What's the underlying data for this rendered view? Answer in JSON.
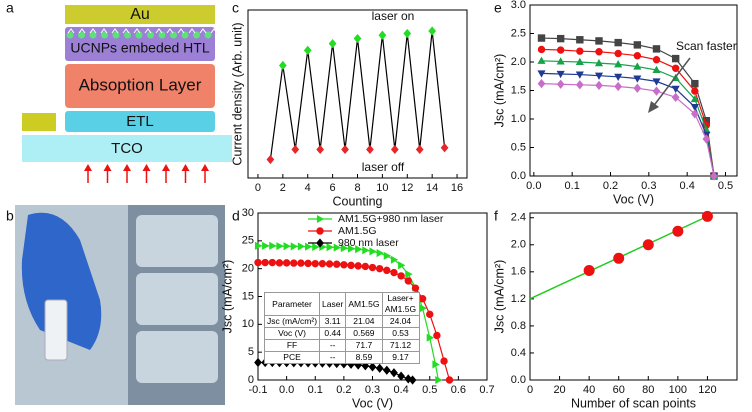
{
  "panel_labels": [
    "a",
    "b",
    "c",
    "d",
    "e",
    "f"
  ],
  "diagram": {
    "layers": [
      "Au",
      "UCNPs embeded HTL",
      "Absoption Layer",
      "ETL",
      "TCO"
    ]
  },
  "chart_data": [
    {
      "type": "line",
      "xlabel": "Counting",
      "ylabel": "Current density (Arb. unit)",
      "xlim": [
        -0.8,
        16.8
      ],
      "xticks": [
        0,
        2,
        4,
        6,
        8,
        10,
        12,
        14,
        16
      ],
      "ylim": [
        0,
        1
      ],
      "annotations": [
        "laser on",
        "laser off"
      ],
      "series": [
        {
          "color": "#000000",
          "marker": "diamond",
          "x": [
            1,
            2,
            3,
            4,
            5,
            6,
            7,
            8,
            9,
            10,
            11,
            12,
            13,
            14,
            15
          ],
          "values": [
            0.11,
            0.67,
            0.17,
            0.76,
            0.17,
            0.8,
            0.17,
            0.83,
            0.17,
            0.85,
            0.17,
            0.86,
            0.17,
            0.875,
            0.18
          ],
          "point_colors": [
            "#e8262a",
            "#22dd22",
            "#e8262a",
            "#22dd22",
            "#e8262a",
            "#22dd22",
            "#e8262a",
            "#22dd22",
            "#e8262a",
            "#22dd22",
            "#e8262a",
            "#22dd22",
            "#e8262a",
            "#22dd22",
            "#e8262a"
          ]
        }
      ]
    },
    {
      "type": "line",
      "xlabel": "Voc (V)",
      "ylabel": "Jsc (mA/cm²)",
      "xlim": [
        -0.1,
        0.7
      ],
      "xticks": [
        -0.1,
        {
          "value": 0,
          "label": "0.0"
        },
        0.1,
        0.2,
        0.3,
        0.4,
        0.5,
        0.6,
        0.7
      ],
      "ylim": [
        0,
        30
      ],
      "yticks": [
        0,
        5,
        10,
        15,
        20,
        25,
        30
      ],
      "legend": "upper right",
      "series": [
        {
          "name": "AM1.5G+980 nm laser",
          "color": "#22dd22",
          "marker": "triangle-right",
          "x": [
            -0.1,
            -0.075,
            -0.05,
            -0.025,
            0,
            0.025,
            0.05,
            0.075,
            0.1,
            0.125,
            0.15,
            0.175,
            0.2,
            0.225,
            0.25,
            0.275,
            0.3,
            0.325,
            0.35,
            0.375,
            0.4,
            0.425,
            0.45,
            0.475,
            0.5,
            0.52,
            0.53
          ],
          "values": [
            24.1,
            24.1,
            24.1,
            24.05,
            24.04,
            24.0,
            24.0,
            23.95,
            23.9,
            23.9,
            23.85,
            23.8,
            23.7,
            23.6,
            23.5,
            23.3,
            23.1,
            22.8,
            22.3,
            21.6,
            20.6,
            19.0,
            16.6,
            12.9,
            7.6,
            2.8,
            0
          ]
        },
        {
          "name": "AM1.5G",
          "color": "#ee1111",
          "marker": "circle",
          "x": [
            -0.1,
            -0.075,
            -0.05,
            -0.025,
            0,
            0.025,
            0.05,
            0.075,
            0.1,
            0.125,
            0.15,
            0.175,
            0.2,
            0.225,
            0.25,
            0.275,
            0.3,
            0.325,
            0.35,
            0.375,
            0.4,
            0.425,
            0.45,
            0.475,
            0.5,
            0.525,
            0.55,
            0.569
          ],
          "values": [
            21.1,
            21.1,
            21.1,
            21.05,
            21.04,
            21.0,
            21.0,
            20.95,
            20.9,
            20.9,
            20.85,
            20.8,
            20.7,
            20.6,
            20.5,
            20.4,
            20.2,
            20.0,
            19.7,
            19.3,
            18.7,
            17.8,
            16.5,
            14.6,
            11.8,
            8.0,
            3.4,
            0
          ]
        },
        {
          "name": "980 nm laser",
          "color": "#000000",
          "marker": "diamond",
          "x": [
            -0.1,
            -0.075,
            -0.05,
            -0.025,
            0,
            0.025,
            0.05,
            0.075,
            0.1,
            0.125,
            0.15,
            0.175,
            0.2,
            0.225,
            0.25,
            0.275,
            0.3,
            0.325,
            0.35,
            0.375,
            0.4,
            0.425,
            0.44
          ],
          "values": [
            3.15,
            3.15,
            3.14,
            3.13,
            3.11,
            3.1,
            3.1,
            3.08,
            3.06,
            3.04,
            3.0,
            2.96,
            2.9,
            2.82,
            2.7,
            2.55,
            2.35,
            2.1,
            1.75,
            1.3,
            0.7,
            0.2,
            0
          ]
        }
      ],
      "table": {
        "header": [
          "Parameter",
          "Laser",
          "AM1.5G",
          "Laser+ AM1.5G"
        ],
        "rows": [
          [
            "Jsc (mA/cm²)",
            "3.11",
            "21.04",
            "24.04"
          ],
          [
            "Voc (V)",
            "0.44",
            "0.569",
            "0.53"
          ],
          [
            "FF",
            "--",
            "71.7",
            "71.12"
          ],
          [
            "PCE",
            "--",
            "8.59",
            "9.17"
          ]
        ]
      }
    },
    {
      "type": "line",
      "xlabel": "Voc (V)",
      "ylabel": "Jsc (mA/cm²)",
      "xlim": [
        -0.01,
        0.53
      ],
      "xticks": [
        {
          "value": 0,
          "label": "0.0"
        },
        0.1,
        0.2,
        0.3,
        0.4,
        0.5
      ],
      "ylim": [
        0,
        3
      ],
      "yticks": [
        {
          "value": 0,
          "label": "0.0"
        },
        0.5,
        {
          "value": 1,
          "label": "1.0"
        },
        1.5,
        {
          "value": 2,
          "label": "2.0"
        },
        2.5,
        {
          "value": 3,
          "label": "3.0"
        }
      ],
      "annotations": [
        "Scan faster"
      ],
      "series": [
        {
          "color": "#444444",
          "marker": "square",
          "x": [
            0.02,
            0.07,
            0.12,
            0.17,
            0.22,
            0.27,
            0.32,
            0.37,
            0.42,
            0.45,
            0.47
          ],
          "values": [
            2.42,
            2.41,
            2.39,
            2.37,
            2.34,
            2.3,
            2.23,
            2.06,
            1.62,
            0.97,
            0
          ]
        },
        {
          "color": "#ee1111",
          "marker": "circle",
          "x": [
            0.02,
            0.07,
            0.12,
            0.17,
            0.22,
            0.27,
            0.32,
            0.37,
            0.42,
            0.45,
            0.47
          ],
          "values": [
            2.22,
            2.21,
            2.19,
            2.18,
            2.15,
            2.11,
            2.04,
            1.89,
            1.49,
            0.89,
            0
          ]
        },
        {
          "color": "#16a34a",
          "marker": "triangle",
          "x": [
            0.02,
            0.07,
            0.12,
            0.17,
            0.22,
            0.27,
            0.32,
            0.37,
            0.42,
            0.45,
            0.47
          ],
          "values": [
            2.02,
            2.01,
            2.0,
            1.98,
            1.96,
            1.92,
            1.86,
            1.72,
            1.35,
            0.81,
            0
          ]
        },
        {
          "color": "#1f3a93",
          "marker": "triangle-down",
          "x": [
            0.02,
            0.07,
            0.12,
            0.17,
            0.22,
            0.27,
            0.32,
            0.37,
            0.42,
            0.45,
            0.47
          ],
          "values": [
            1.8,
            1.79,
            1.78,
            1.76,
            1.74,
            1.71,
            1.66,
            1.53,
            1.21,
            0.72,
            0
          ]
        },
        {
          "color": "#c86ec8",
          "marker": "diamond",
          "x": [
            0.02,
            0.07,
            0.12,
            0.17,
            0.22,
            0.27,
            0.32,
            0.37,
            0.42,
            0.45,
            0.47
          ],
          "values": [
            1.62,
            1.61,
            1.6,
            1.59,
            1.57,
            1.54,
            1.49,
            1.38,
            1.09,
            0.65,
            0
          ]
        }
      ]
    },
    {
      "type": "scatter",
      "xlabel": "Number of scan points",
      "ylabel": "Jsc (mA/cm²)",
      "xlim": [
        0,
        140
      ],
      "xticks": [
        0,
        20,
        40,
        60,
        80,
        100,
        120
      ],
      "ylim": [
        0,
        2.47
      ],
      "yticks": [
        {
          "value": 0,
          "label": "0.0"
        },
        0.4,
        0.8,
        1.2,
        1.6,
        {
          "value": 2,
          "label": "2.0"
        },
        2.4
      ],
      "series": [
        {
          "color": "#ee1111",
          "marker": "circle",
          "x": [
            40,
            60,
            80,
            100,
            120
          ],
          "values": [
            1.62,
            1.8,
            2.0,
            2.2,
            2.42
          ]
        }
      ],
      "fit": {
        "color": "#22cc22",
        "x": [
          0,
          120
        ],
        "values": [
          1.2,
          2.42
        ]
      }
    }
  ]
}
